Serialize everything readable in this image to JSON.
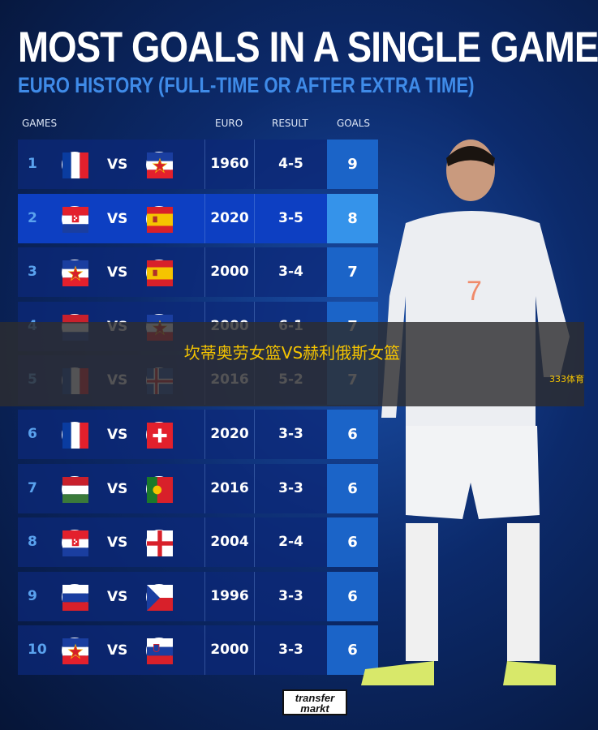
{
  "title": "MOST GOALS IN A SINGLE GAME",
  "subtitle": "EURO HISTORY (FULL-TIME OR AFTER EXTRA TIME)",
  "headers": {
    "games": "GAMES",
    "euro": "EURO",
    "result": "RESULT",
    "goals": "GOALS"
  },
  "vs_label": "VS",
  "rows": [
    {
      "rank": "1",
      "home": "france-flag",
      "away": "yugoslavia-flag",
      "euro": "1960",
      "result": "4-5",
      "goals": "9"
    },
    {
      "rank": "2",
      "home": "croatia-flag",
      "away": "spain-flag",
      "euro": "2020",
      "result": "3-5",
      "goals": "8"
    },
    {
      "rank": "3",
      "home": "yugoslavia-flag",
      "away": "spain-flag",
      "euro": "2000",
      "result": "3-4",
      "goals": "7"
    },
    {
      "rank": "4",
      "home": "netherlands-flag",
      "away": "yugoslavia-flag",
      "euro": "2000",
      "result": "6-1",
      "goals": "7"
    },
    {
      "rank": "5",
      "home": "france-flag",
      "away": "iceland-flag",
      "euro": "2016",
      "result": "5-2",
      "goals": "7"
    },
    {
      "rank": "6",
      "home": "france-flag",
      "away": "switzerland-flag",
      "euro": "2020",
      "result": "3-3",
      "goals": "6"
    },
    {
      "rank": "7",
      "home": "hungary-flag",
      "away": "portugal-flag",
      "euro": "2016",
      "result": "3-3",
      "goals": "6"
    },
    {
      "rank": "8",
      "home": "croatia-flag",
      "away": "england-flag",
      "euro": "2004",
      "result": "2-4",
      "goals": "6"
    },
    {
      "rank": "9",
      "home": "russia-flag",
      "away": "czech-flag",
      "euro": "1996",
      "result": "3-3",
      "goals": "6"
    },
    {
      "rank": "10",
      "home": "yugoslavia-flag",
      "away": "slovenia-flag",
      "euro": "2000",
      "result": "3-3",
      "goals": "6"
    }
  ],
  "overlay": {
    "message": "坎蒂奥劳女篮VS赫利俄斯女篮",
    "source": "333体育"
  },
  "logo": {
    "line1": "transfer",
    "line2": "markt"
  },
  "colors": {
    "accent": "#3f8be8",
    "highlight_goals": "#3593ea",
    "overlay_text": "#f5c400"
  }
}
